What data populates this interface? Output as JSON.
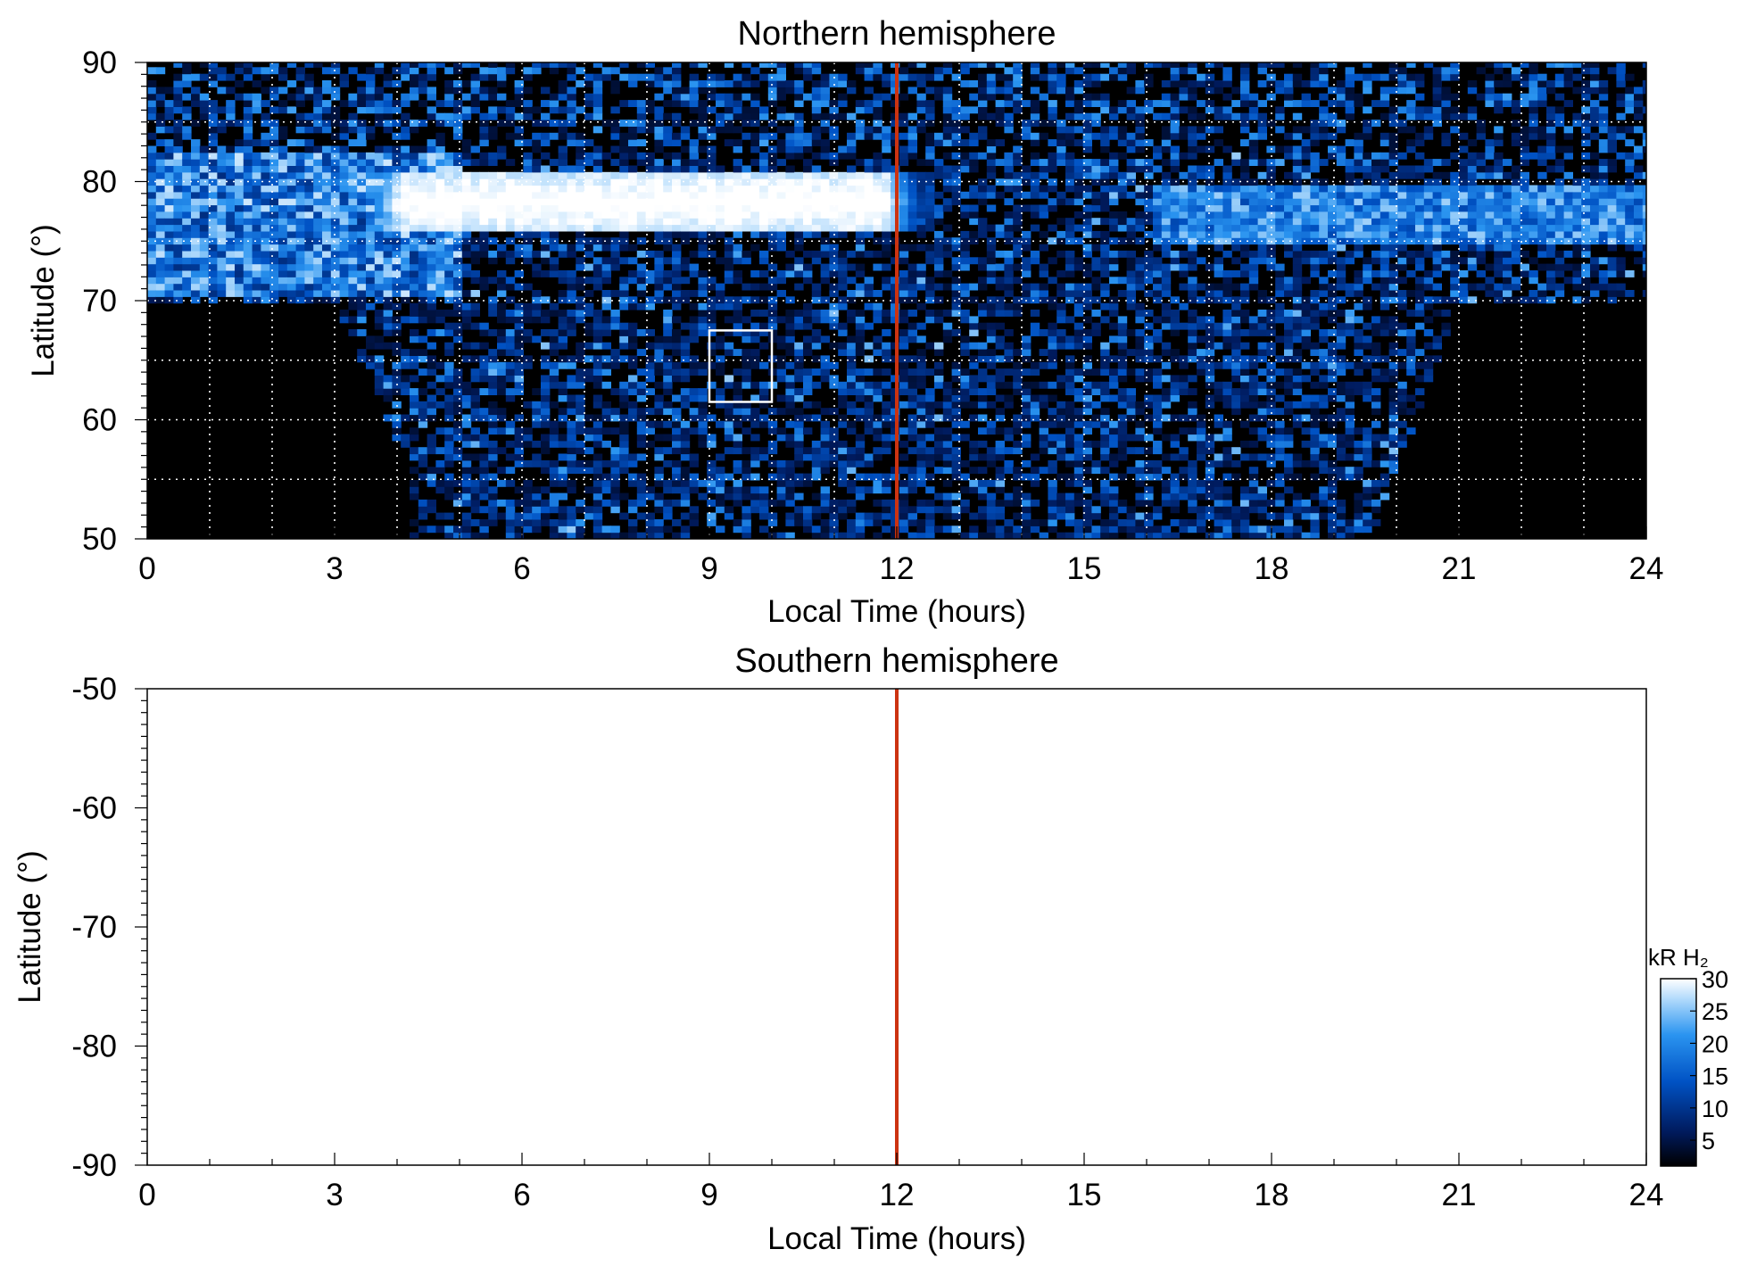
{
  "chart_data": [
    {
      "type": "heatmap",
      "title": "Northern hemisphere",
      "xlabel": "Local Time (hours)",
      "ylabel": "Latitude (°)",
      "xlim": [
        0,
        24
      ],
      "ylim": [
        50,
        90
      ],
      "x_ticks": [
        "0",
        "3",
        "6",
        "9",
        "12",
        "15",
        "18",
        "21",
        "24"
      ],
      "y_ticks": [
        "50",
        "60",
        "70",
        "80",
        "90"
      ],
      "grid": true,
      "colormap": "black-blue-white",
      "value_range_kR": [
        0,
        30
      ],
      "features": {
        "bright_auroral_band": {
          "local_time_start": 3,
          "local_time_end": 12.5,
          "latitude_center": 78,
          "latitude_halfwidth": 2.5,
          "intensity_kR": 30
        },
        "dusk_band": {
          "local_time_start": 16,
          "local_time_end": 24,
          "latitude_center": 77,
          "intensity_kR": 22
        },
        "no_coverage_latitude_below": 70,
        "noon_marker_local_time": 12,
        "highlight_box": {
          "local_time": [
            9,
            10
          ],
          "latitude": [
            61.5,
            67.5
          ]
        }
      },
      "noon_line_color": "#cc3311"
    },
    {
      "type": "heatmap",
      "title": "Southern hemisphere",
      "xlabel": "Local Time (hours)",
      "ylabel": "Latitude (°)",
      "xlim": [
        0,
        24
      ],
      "ylim": [
        -90,
        -50
      ],
      "x_ticks": [
        "0",
        "3",
        "6",
        "9",
        "12",
        "15",
        "18",
        "21",
        "24"
      ],
      "y_ticks": [
        "-50",
        "-60",
        "-70",
        "-80",
        "-90"
      ],
      "grid": false,
      "values": "none (no observations)",
      "noon_marker_local_time": 12,
      "noon_line_color": "#cc3311"
    }
  ],
  "colorbar": {
    "label": "kR H₂",
    "ticks": [
      "30",
      "25",
      "20",
      "15",
      "10",
      "5"
    ],
    "tick_values": [
      30,
      25,
      20,
      15,
      10,
      5
    ],
    "range": [
      1,
      30
    ]
  }
}
